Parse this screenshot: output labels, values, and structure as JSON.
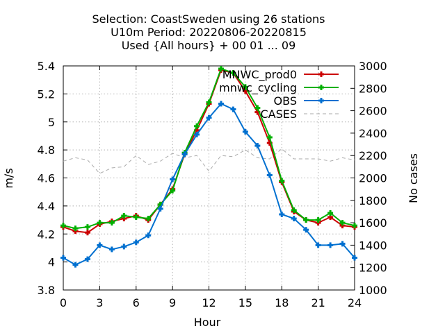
{
  "chart_data": {
    "type": "line",
    "title": [
      "Selection: CoastSweden using    26 stations",
      "U10m   Period: 20220806-20220815",
      "Used {All hours} + 00 01 ... 09"
    ],
    "xlabel": "Hour",
    "ylabel": "m/s",
    "y2label": "No cases",
    "xlim": [
      0,
      24
    ],
    "ylim": [
      3.8,
      5.4
    ],
    "y2lim": [
      1000,
      3000
    ],
    "xticks": [
      "0",
      "3",
      "6",
      "9",
      "12",
      "15",
      "18",
      "21",
      "24"
    ],
    "yticks": [
      "3.8",
      "4",
      "4.2",
      "4.4",
      "4.6",
      "4.8",
      "5",
      "5.2",
      "5.4"
    ],
    "y2ticks": [
      "1000",
      "1200",
      "1400",
      "1600",
      "1800",
      "2000",
      "2200",
      "2400",
      "2600",
      "2800",
      "3000"
    ],
    "grid": true,
    "legend_position": "top-right",
    "x": [
      0,
      1,
      2,
      3,
      4,
      5,
      6,
      7,
      8,
      9,
      10,
      11,
      12,
      13,
      14,
      15,
      16,
      17,
      18,
      19,
      20,
      21,
      22,
      23,
      24
    ],
    "series": [
      {
        "name": "MNWC_prod0",
        "color": "#cc0000",
        "marker": "plus",
        "axis": "y",
        "values": [
          4.25,
          4.22,
          4.21,
          4.27,
          4.29,
          4.31,
          4.33,
          4.3,
          4.41,
          4.52,
          4.77,
          4.94,
          5.13,
          5.37,
          5.35,
          5.22,
          5.07,
          4.85,
          4.57,
          4.36,
          4.3,
          4.28,
          4.32,
          4.26,
          4.25
        ]
      },
      {
        "name": "mnwc_cycling",
        "color": "#00b000",
        "marker": "plus",
        "axis": "y",
        "values": [
          4.26,
          4.24,
          4.25,
          4.28,
          4.28,
          4.33,
          4.32,
          4.31,
          4.41,
          4.51,
          4.78,
          4.97,
          5.14,
          5.38,
          5.35,
          5.25,
          5.1,
          4.89,
          4.58,
          4.37,
          4.3,
          4.3,
          4.35,
          4.28,
          4.26
        ]
      },
      {
        "name": "OBS",
        "color": "#0070d0",
        "marker": "plus",
        "axis": "y",
        "values": [
          4.03,
          3.98,
          4.02,
          4.12,
          4.09,
          4.11,
          4.14,
          4.19,
          4.38,
          4.59,
          4.77,
          4.91,
          5.03,
          5.13,
          5.09,
          4.93,
          4.83,
          4.62,
          4.34,
          4.31,
          4.23,
          4.12,
          4.12,
          4.13,
          4.03
        ]
      },
      {
        "name": "CASES",
        "color": "#aaaaaa",
        "dashed": true,
        "axis": "y2",
        "values": [
          2150,
          2180,
          2160,
          2040,
          2090,
          2100,
          2200,
          2120,
          2150,
          2220,
          2180,
          2200,
          2060,
          2200,
          2190,
          2250,
          2180,
          2170,
          2260,
          2170,
          2170,
          2170,
          2150,
          2180,
          2160
        ]
      }
    ]
  }
}
